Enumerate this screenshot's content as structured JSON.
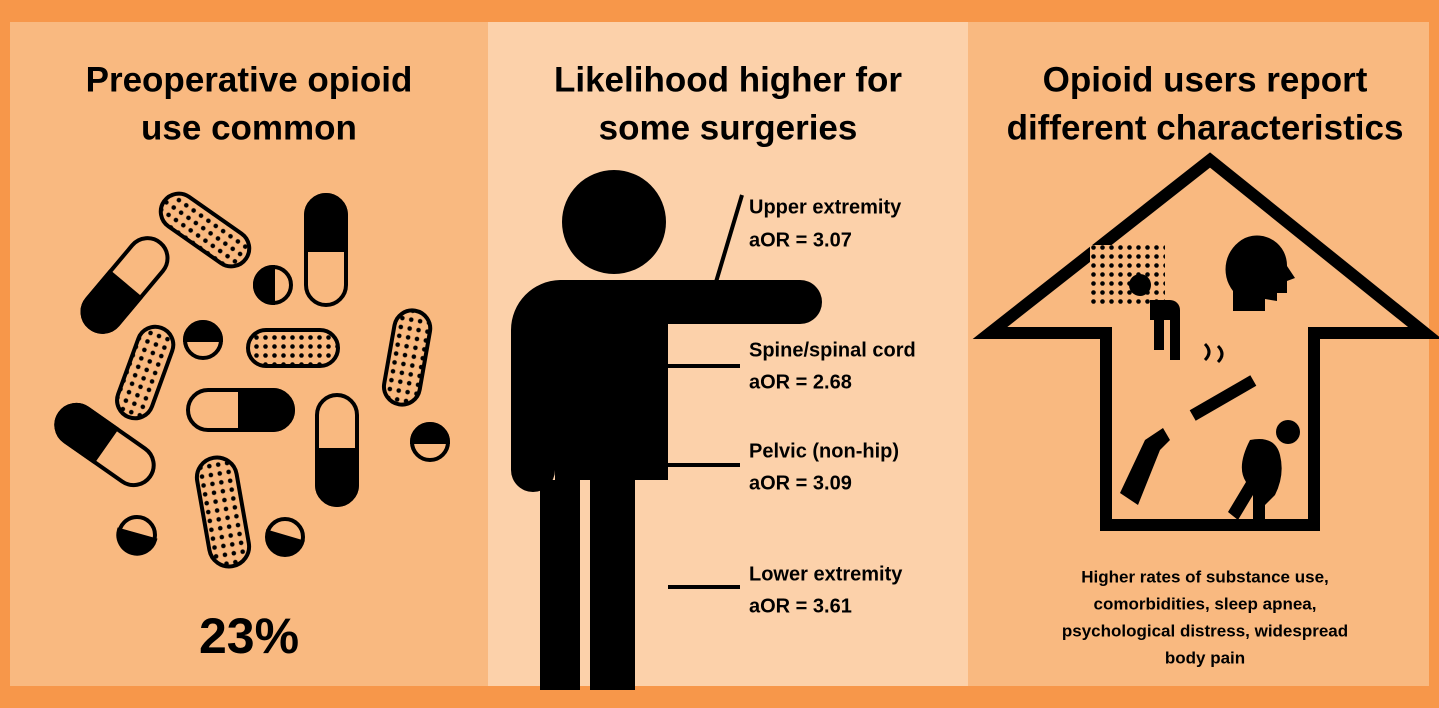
{
  "panels": [
    {
      "title": [
        "Preoperative opioid",
        "use common"
      ],
      "stat": "23%"
    },
    {
      "title": [
        "Likelihood higher for",
        "some surgeries"
      ],
      "items": [
        {
          "site": "Upper extremity",
          "aor": "aOR = 3.07"
        },
        {
          "site": "Spine/spinal cord",
          "aor": "aOR = 2.68"
        },
        {
          "site": "Pelvic (non-hip)",
          "aor": "aOR = 3.09"
        },
        {
          "site": "Lower extremity",
          "aor": "aOR = 3.61"
        }
      ]
    },
    {
      "title": [
        "Opioid users report",
        "different characteristics"
      ],
      "caption": [
        "Higher rates of substance use,",
        "comorbidities, sleep apnea,",
        "psychological distress, widespread",
        "body pain"
      ]
    }
  ]
}
